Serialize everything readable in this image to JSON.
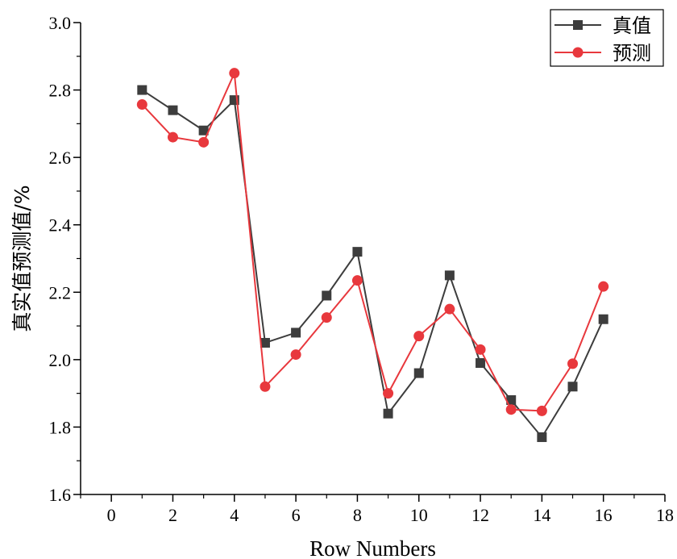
{
  "chart_data": {
    "type": "line",
    "xlabel": "Row Numbers",
    "ylabel": "真实值预测值/%",
    "xlim": [
      -1,
      18
    ],
    "ylim": [
      1.6,
      3.0
    ],
    "x_ticks": [
      0,
      2,
      4,
      6,
      8,
      10,
      12,
      14,
      16,
      18
    ],
    "y_ticks": [
      1.6,
      1.8,
      2.0,
      2.2,
      2.4,
      2.6,
      2.8,
      3.0
    ],
    "grid": false,
    "legend_position": "top-right",
    "x": [
      1,
      2,
      3,
      4,
      5,
      6,
      7,
      8,
      9,
      10,
      11,
      12,
      13,
      14,
      15,
      16
    ],
    "series": [
      {
        "name": "真值",
        "marker": "square",
        "color": "#3d3d3d",
        "values": [
          2.8,
          2.74,
          2.68,
          2.77,
          2.05,
          2.08,
          2.19,
          2.32,
          1.84,
          1.96,
          2.25,
          1.99,
          1.88,
          1.77,
          1.92,
          2.12
        ]
      },
      {
        "name": "预测",
        "marker": "circle",
        "color": "#e8383d",
        "values": [
          2.757,
          2.66,
          2.645,
          2.85,
          1.92,
          2.015,
          2.125,
          2.235,
          1.9,
          2.07,
          2.15,
          2.03,
          1.852,
          1.848,
          1.988,
          2.217
        ]
      }
    ]
  }
}
